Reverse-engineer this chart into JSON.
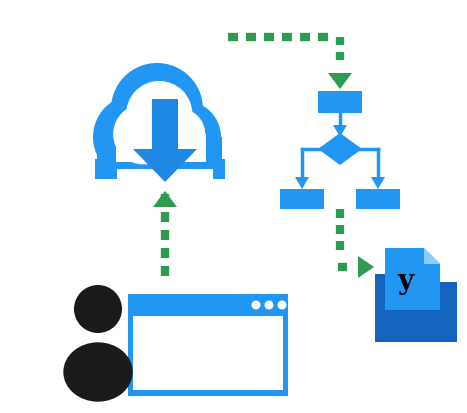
{
  "bg_color": "#ffffff",
  "cloud_blue": "#2196F3",
  "arrow_blue": "#1E88E5",
  "dark_blue": "#1565C0",
  "green": "#2E9B4E",
  "black": "#1a1a1a",
  "figsize": [
    4.67,
    4.14
  ],
  "dpi": 100
}
